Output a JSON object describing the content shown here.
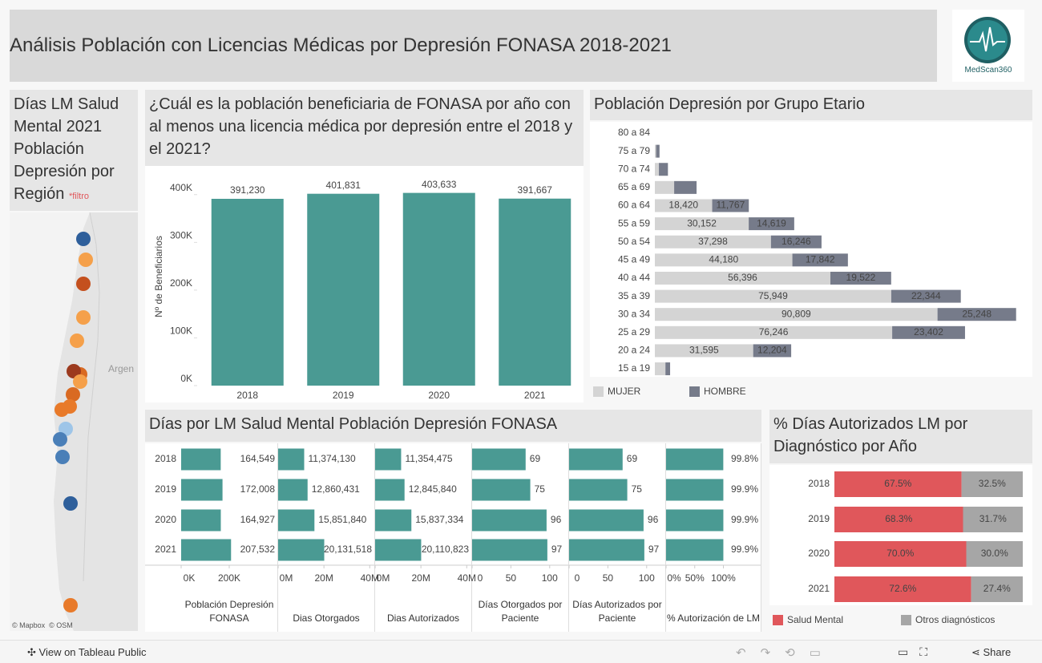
{
  "header": {
    "title": "Análisis Población con Licencias Médicas por Depresión FONASA 2018-2021",
    "logo": "MedScan360"
  },
  "map": {
    "title": "Días LM Salud Mental 2021 Población Depresión por Región",
    "filter_note": "*filtro",
    "country_label": "Argen",
    "attribution": "© Mapbox  © OSM"
  },
  "chart_data": [
    {
      "type": "column",
      "title": "¿Cuál es la población beneficiaria de FONASA por año con al menos una licencia médica por depresión entre el 2018 y el 2021?",
      "y_label": "Nº de Beneficiarios",
      "categories": [
        "2018",
        "2019",
        "2020",
        "2021"
      ],
      "values": [
        391230,
        401831,
        403633,
        391667
      ],
      "value_labels": [
        "391,230",
        "401,831",
        "403,633",
        "391,667"
      ],
      "color": "#4a9a93",
      "ylim": [
        0,
        450000
      ],
      "yticks": [
        {
          "value": 0,
          "label": "0K"
        },
        {
          "value": 100000,
          "label": "100K"
        },
        {
          "value": 200000,
          "label": "200K"
        },
        {
          "value": 300000,
          "label": "300K"
        },
        {
          "value": 400000,
          "label": "400K"
        }
      ]
    },
    {
      "type": "stacked-bar",
      "title": "Población Depresión por Grupo Etario",
      "categories": [
        "80 a 84",
        "75 a 79",
        "70 a 74",
        "65 a 69",
        "60 a 64",
        "55 a 59",
        "50 a 54",
        "45 a 49",
        "40 a 44",
        "35 a 39",
        "30 a 34",
        "25 a 29",
        "20 a 24",
        "15 a 19"
      ],
      "series": [
        {
          "name": "MUJER",
          "color": "#d4d4d4",
          "values": [
            0,
            400,
            1300,
            6200,
            18420,
            30152,
            37298,
            44180,
            56396,
            75949,
            90809,
            76246,
            31595,
            3400
          ],
          "value_labels": [
            null,
            null,
            null,
            null,
            "18,420",
            "30,152",
            "37,298",
            "44,180",
            "56,396",
            "75,949",
            "90,809",
            "76,246",
            "31,595",
            null
          ]
        },
        {
          "name": "HOMBRE",
          "color": "#767b8a",
          "values": [
            0,
            1100,
            2900,
            7200,
            11767,
            14619,
            16246,
            17842,
            19522,
            22344,
            25248,
            23402,
            12204,
            1500
          ],
          "value_labels": [
            null,
            null,
            null,
            null,
            "11,767",
            "14,619",
            "16,246",
            "17,842",
            "19,522",
            "22,344",
            "25,248",
            "23,402",
            "12,204",
            null
          ]
        }
      ],
      "xlim": [
        0,
        120000
      ]
    },
    {
      "type": "bar-grid",
      "title": "Días por LM Salud Mental Población Depresión FONASA",
      "categories": [
        "2018",
        "2019",
        "2020",
        "2021"
      ],
      "color": "#4a9a93",
      "panels": [
        {
          "label": "Población Depresión FONASA",
          "values": [
            164549,
            172008,
            164927,
            207532
          ],
          "value_labels": [
            "164,549",
            "172,008",
            "164,927",
            "207,532"
          ],
          "xlim": [
            0,
            400000
          ],
          "xticks": [
            {
              "value": 0,
              "label": "0K"
            },
            {
              "value": 200000,
              "label": "200K"
            }
          ]
        },
        {
          "label": "Dias Otorgados",
          "values": [
            11374130,
            12860431,
            15851840,
            20131518
          ],
          "value_labels": [
            "11,374,130",
            "12,860,431",
            "15,851,840",
            "20,131,518"
          ],
          "xlim": [
            0,
            42000000
          ],
          "xticks": [
            {
              "value": 0,
              "label": "0M"
            },
            {
              "value": 20000000,
              "label": "20M"
            },
            {
              "value": 40000000,
              "label": "40M"
            }
          ]
        },
        {
          "label": "Dias Autorizados",
          "values": [
            11354475,
            12845840,
            15837334,
            20110823
          ],
          "value_labels": [
            "11,354,475",
            "12,845,840",
            "15,837,334",
            "20,110,823"
          ],
          "xlim": [
            0,
            42000000
          ],
          "xticks": [
            {
              "value": 0,
              "label": "0M"
            },
            {
              "value": 20000000,
              "label": "20M"
            },
            {
              "value": 40000000,
              "label": "40M"
            }
          ]
        },
        {
          "label": "Días Otorgados por Paciente",
          "values": [
            69,
            75,
            96,
            97
          ],
          "xlim": [
            0,
            124
          ],
          "xticks": [
            0,
            50,
            100
          ]
        },
        {
          "label": "Días Autorizados por Paciente",
          "values": [
            69,
            75,
            96,
            97
          ],
          "xlim": [
            0,
            124
          ],
          "xticks": [
            0,
            50,
            100
          ]
        },
        {
          "label": "% Autorización de LM",
          "values": [
            99.8,
            99.9,
            99.9,
            99.9
          ],
          "value_labels": [
            "99.8%",
            "99.9%",
            "99.9%",
            "99.9%"
          ],
          "xlim": [
            0,
            165
          ],
          "xticks": [
            {
              "value": 0,
              "label": "0%"
            },
            {
              "value": 50,
              "label": "50%"
            },
            {
              "value": 100,
              "label": "100%"
            }
          ]
        }
      ]
    },
    {
      "type": "stacked-percent-bar",
      "title": "% Días Autorizados LM por Diagnóstico por Año",
      "categories": [
        "2018",
        "2019",
        "2020",
        "2021"
      ],
      "series": [
        {
          "name": "Salud Mental",
          "color": "#e0575b",
          "values": [
            67.5,
            68.3,
            70.0,
            72.6
          ],
          "value_labels": [
            "67.5%",
            "68.3%",
            "70.0%",
            "72.6%"
          ]
        },
        {
          "name": "Otros diagnósticos",
          "color": "#a6a6a6",
          "values": [
            32.5,
            31.7,
            30.0,
            27.4
          ],
          "value_labels": [
            "32.5%",
            "31.7%",
            "30.0%",
            "27.4%"
          ]
        }
      ],
      "xlim": [
        0,
        100
      ]
    }
  ],
  "footer": {
    "view": "View on Tableau Public",
    "share": "Share"
  }
}
